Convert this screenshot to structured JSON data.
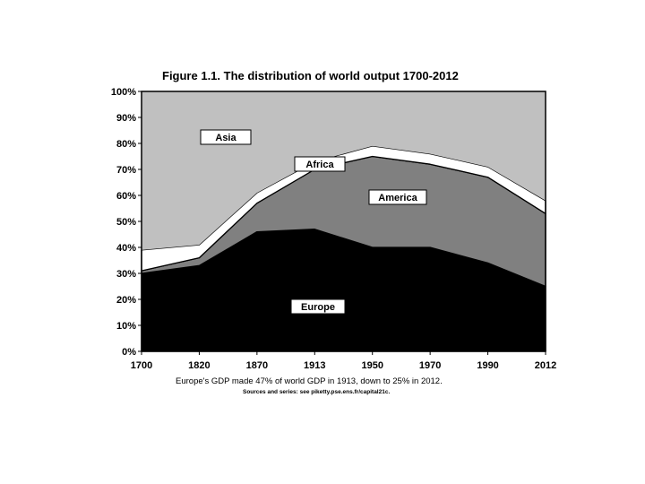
{
  "chart_data": {
    "type": "area",
    "stacked": true,
    "title": "Figure 1.1. The distribution of world output 1700-2012",
    "xlabel": "",
    "ylabel": "",
    "categories": [
      "1700",
      "1820",
      "1870",
      "1913",
      "1950",
      "1970",
      "1990",
      "2012"
    ],
    "yticks": [
      "0%",
      "10%",
      "20%",
      "30%",
      "40%",
      "50%",
      "60%",
      "70%",
      "80%",
      "90%",
      "100%"
    ],
    "ylim": [
      0,
      100
    ],
    "grid": false,
    "series": [
      {
        "name": "Europe",
        "values": [
          30,
          33,
          46,
          47,
          40,
          40,
          34,
          25
        ],
        "color": "#000000"
      },
      {
        "name": "America",
        "values": [
          1,
          3,
          11,
          23,
          35,
          32,
          33,
          28
        ],
        "color": "#808080"
      },
      {
        "name": "Africa",
        "values": [
          8,
          5,
          4,
          3,
          4,
          4,
          4,
          5
        ],
        "color": "#ffffff"
      },
      {
        "name": "Asia",
        "values": [
          61,
          59,
          39,
          27,
          21,
          24,
          29,
          42
        ],
        "color": "#c0c0c0"
      }
    ],
    "caption": "Europe's GDP made 47% of world GDP in 1913, down to 25% in 2012.",
    "source": "Sources and series: see piketty.pse.ens.fr/capital21c."
  }
}
